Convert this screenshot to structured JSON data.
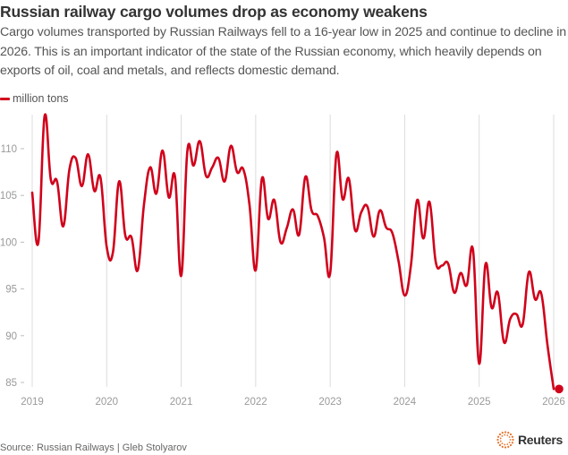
{
  "header": {
    "title": "Russian railway cargo volumes drop as economy weakens",
    "subtitle": "Cargo volumes transported by Russian Railways fell to a 16-year low in 2025 and continue to decline in 2026. This is an important indicator of the state of the Russian economy, which heavily depends on exports of oil, coal and metals, and reflects domestic demand."
  },
  "legend": {
    "label": "million tons",
    "color": "#d0021b"
  },
  "footer": {
    "source": "Source: Russian Railways | Gleb Stolyarov",
    "brand": "Reuters"
  },
  "colors": {
    "line": "#d0021b",
    "grid": "#dcdcdc",
    "tick_text": "#9a9a9a"
  },
  "chart_data": {
    "type": "line",
    "title": "Russian railway cargo volumes drop as economy weakens",
    "xlabel": "",
    "ylabel": "million tons",
    "ylim": [
      84,
      114
    ],
    "xlim": [
      "2019-01",
      "2026-01"
    ],
    "yticks": [
      85,
      90,
      95,
      100,
      105,
      110
    ],
    "xticks": [
      "2019",
      "2020",
      "2021",
      "2022",
      "2023",
      "2024",
      "2025",
      "2026"
    ],
    "grid": "vertical at years",
    "legend_position": "top-left",
    "end_marker": true,
    "series": [
      {
        "name": "million tons",
        "start": "2019-01",
        "frequency": "monthly",
        "values": [
          105.3,
          100.0,
          113.5,
          106.7,
          106.5,
          101.7,
          107.8,
          109.0,
          106.0,
          109.4,
          105.5,
          106.9,
          99.5,
          98.9,
          106.5,
          100.7,
          100.5,
          97.0,
          104.0,
          108.0,
          105.2,
          109.8,
          104.8,
          107.0,
          96.4,
          109.8,
          108.2,
          110.8,
          107.1,
          108.0,
          109.0,
          106.5,
          110.3,
          107.5,
          107.8,
          104.0,
          97.0,
          106.8,
          102.5,
          104.5,
          100.0,
          101.5,
          103.5,
          100.8,
          107.0,
          103.4,
          102.8,
          100.5,
          96.7,
          109.4,
          104.6,
          106.8,
          101.3,
          103.2,
          103.8,
          100.6,
          103.4,
          101.6,
          101.0,
          98.0,
          94.3,
          97.5,
          104.5,
          100.4,
          104.3,
          97.9,
          97.5,
          97.7,
          94.6,
          96.7,
          95.4,
          99.2,
          87.0,
          97.6,
          93.0,
          94.6,
          89.3,
          91.8,
          92.3,
          91.2,
          96.8,
          93.9,
          94.5,
          89.0,
          84.3
        ]
      }
    ]
  }
}
